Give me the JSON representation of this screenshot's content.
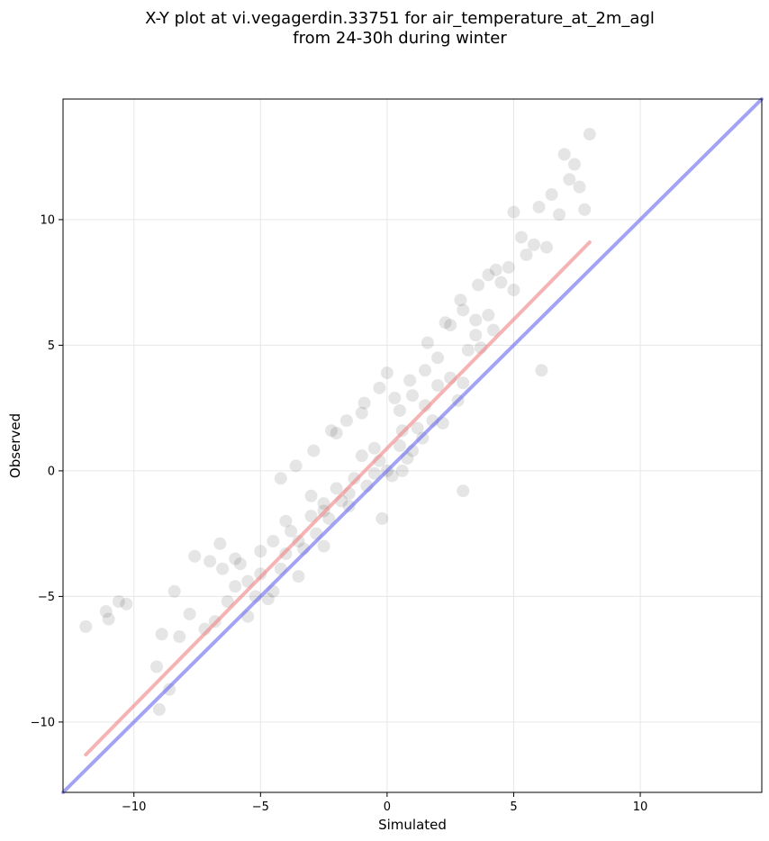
{
  "chart_data": {
    "type": "scatter",
    "title": "X-Y plot at vi.vegagerdin.33751 for air_temperature_at_2m_agl",
    "subtitle": "from 24-30h during winter",
    "xlabel": "Simulated",
    "ylabel": "Observed",
    "xlim": [
      -12.8,
      14.8
    ],
    "ylim": [
      -12.8,
      14.8
    ],
    "xticks": [
      -10,
      -5,
      0,
      5,
      10
    ],
    "yticks": [
      -10,
      -5,
      0,
      5,
      10
    ],
    "xtick_labels": [
      "−10",
      "−5",
      "0",
      "5",
      "10"
    ],
    "ytick_labels": [
      "−10",
      "−5",
      "0",
      "5",
      "10"
    ],
    "grid": true,
    "colors": {
      "points": "#000000",
      "regression_line": "#f08080",
      "identity_line": "#6666ee",
      "grid": "#e6e6e6"
    },
    "series": [
      {
        "x": [
          -11.9,
          -11.1,
          -11.0,
          -10.6,
          -10.3,
          -9.1,
          -9.0,
          -8.9,
          -8.6,
          -8.4,
          -8.2,
          -7.8,
          -7.6,
          -7.2,
          -7.0,
          -6.8,
          -6.5,
          -6.3,
          -6.0,
          -5.8,
          -5.5,
          -5.2,
          -5.0,
          -4.7,
          -4.5,
          -4.2,
          -4.0,
          -3.8,
          -3.5,
          -3.3,
          -3.0,
          -2.8,
          -2.5,
          -2.3,
          -2.0,
          -1.8,
          -1.5,
          -1.3,
          -1.0,
          -0.8,
          -0.5,
          -0.3,
          0.0,
          0.2,
          0.5,
          0.6,
          0.6,
          0.8,
          1.0,
          1.2,
          1.4,
          1.5,
          1.8,
          2.0,
          2.2,
          2.5,
          2.8,
          3.0,
          3.2,
          3.5,
          3.7,
          4.0,
          4.2,
          4.5,
          4.8,
          5.0,
          5.3,
          5.5,
          5.8,
          6.0,
          6.3,
          6.5,
          6.8,
          7.0,
          7.2,
          7.4,
          7.6,
          7.8,
          8.0,
          -6.0,
          -5.5,
          -5.0,
          -4.5,
          -4.0,
          -3.5,
          -3.0,
          -2.5,
          -2.0,
          -1.5,
          -1.0,
          -0.5,
          0.0,
          0.5,
          1.0,
          1.5,
          2.0,
          2.5,
          3.0,
          3.5,
          4.0,
          -4.2,
          -3.6,
          -2.9,
          -2.2,
          -1.6,
          -0.9,
          -0.3,
          0.3,
          0.9,
          1.6,
          2.3,
          2.9,
          3.6,
          4.3,
          5.0,
          6.1,
          -2.5,
          3.0,
          -6.6,
          -0.2
        ],
        "y": [
          -6.2,
          -5.6,
          -5.9,
          -5.2,
          -5.3,
          -7.8,
          -9.5,
          -6.5,
          -8.7,
          -4.8,
          -6.6,
          -5.7,
          -3.4,
          -6.3,
          -3.6,
          -6.0,
          -3.9,
          -5.2,
          -4.6,
          -3.7,
          -4.4,
          -5.0,
          -3.2,
          -5.1,
          -2.8,
          -3.9,
          -3.3,
          -2.4,
          -2.8,
          -3.1,
          -1.8,
          -2.5,
          -1.3,
          -1.9,
          -0.7,
          -1.2,
          -0.9,
          -0.3,
          0.6,
          -0.6,
          0.9,
          0.4,
          0.0,
          -0.2,
          1.0,
          0.0,
          1.6,
          0.5,
          0.8,
          1.7,
          1.3,
          2.6,
          2.0,
          3.4,
          1.9,
          3.7,
          2.8,
          3.5,
          4.8,
          5.4,
          4.9,
          6.2,
          5.6,
          7.5,
          8.1,
          7.2,
          9.3,
          8.6,
          9.0,
          10.5,
          8.9,
          11.0,
          10.2,
          12.6,
          11.6,
          12.2,
          11.3,
          10.4,
          13.4,
          -3.5,
          -5.8,
          -4.1,
          -4.8,
          -2.0,
          -4.2,
          -1.0,
          -3.0,
          1.5,
          -1.4,
          2.3,
          -0.1,
          3.9,
          2.4,
          3.0,
          4.0,
          4.5,
          5.8,
          6.4,
          6.0,
          7.8,
          -0.3,
          0.2,
          0.8,
          1.6,
          2.0,
          2.7,
          3.3,
          2.9,
          3.6,
          5.1,
          5.9,
          6.8,
          7.4,
          8.0,
          10.3,
          4.0,
          -1.6,
          -0.8,
          -2.9,
          -1.9
        ]
      }
    ],
    "lines": [
      {
        "x": [
          -11.9,
          8.0
        ],
        "y": [
          -11.3,
          9.1
        ]
      },
      {
        "x": [
          -12.8,
          14.8
        ],
        "y": [
          -12.8,
          14.8
        ]
      }
    ]
  }
}
